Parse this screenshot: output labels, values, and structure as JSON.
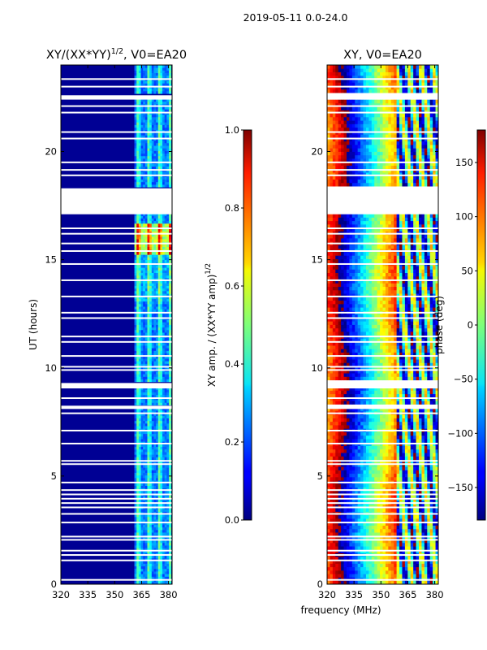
{
  "suptitle": "2019-05-11 0.0-24.0",
  "chart_data": [
    {
      "type": "heatmap",
      "title": "XY/(XX*YY)",
      "title_exponent": "1/2",
      "title_suffix": ", V0=EA20",
      "xlabel": "",
      "ylabel": "UT (hours)",
      "xlim": [
        320,
        382
      ],
      "ylim": [
        0,
        24
      ],
      "xticks": [
        "320",
        "335",
        "350",
        "365",
        "380"
      ],
      "xtick_values": [
        320,
        335,
        350,
        365,
        380
      ],
      "yticks": [
        "0",
        "5",
        "10",
        "15",
        "20"
      ],
      "ytick_values": [
        0,
        5,
        10,
        15,
        20
      ],
      "colorbar": {
        "label": "XY amp. / (XX*YY amp)",
        "label_exponent": "1/2",
        "vmin": 0.0,
        "vmax": 1.0,
        "ticks": [
          "0.0",
          "0.2",
          "0.4",
          "0.6",
          "0.8",
          "1.0"
        ],
        "tick_values": [
          0.0,
          0.2,
          0.4,
          0.6,
          0.8,
          1.0
        ]
      },
      "flagged_hours": [
        [
          17.1,
          18.3
        ],
        [
          9.05,
          9.3
        ],
        [
          22.4,
          22.6
        ],
        [
          8.1,
          8.25
        ]
      ],
      "signal_band_mhz": [
        361,
        381
      ],
      "background_value": 0.02,
      "peak_value": 0.85,
      "peak_hours": [
        15.2,
        16.6
      ]
    },
    {
      "type": "heatmap",
      "title": "XY, V0=EA20",
      "xlabel": "frequency (MHz)",
      "ylabel": "",
      "xlim": [
        320,
        382
      ],
      "ylim": [
        0,
        24
      ],
      "xticks": [
        "320",
        "335",
        "350",
        "365",
        "380"
      ],
      "xtick_values": [
        320,
        335,
        350,
        365,
        380
      ],
      "yticks": [
        "0",
        "5",
        "10",
        "15",
        "20"
      ],
      "ytick_values": [
        0,
        5,
        10,
        15,
        20
      ],
      "colorbar": {
        "label": "phase (deg)",
        "vmin": -180,
        "vmax": 180,
        "ticks": [
          "−150",
          "−100",
          "−50",
          "0",
          "50",
          "100",
          "150"
        ],
        "tick_values": [
          -150,
          -100,
          -50,
          0,
          50,
          100,
          150
        ]
      },
      "flagged_hours": [
        [
          17.1,
          18.3
        ],
        [
          9.05,
          9.3
        ],
        [
          22.4,
          22.6
        ],
        [
          8.1,
          8.25
        ]
      ]
    }
  ]
}
